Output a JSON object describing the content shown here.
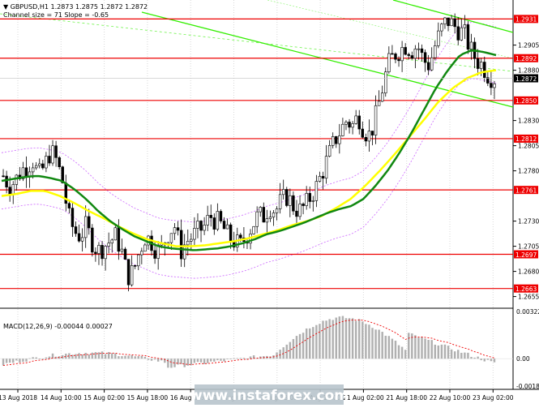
{
  "header": {
    "symbol_line": "▼ GBPUSD,H1  1.2873 1.2875 1.2872 1.2872",
    "channel_line": "Channel size = 71 Slope = -0.65"
  },
  "macd": {
    "label": "MACD(12,26,9) -0.00044 0.00027",
    "axis_ticks": [
      "0.00322",
      "0.00",
      "-0.00187"
    ]
  },
  "price_axis": {
    "ticks": [
      "1.2905",
      "1.2880",
      "1.2855",
      "1.2830",
      "1.2805",
      "1.2780",
      "1.2755",
      "1.2730",
      "1.2705",
      "1.2680",
      "1.2655"
    ],
    "current_price": "1.2872"
  },
  "time_axis": {
    "labels": [
      "13 Aug 2018",
      "14 Aug 10:00",
      "15 Aug 02:00",
      "15 Aug 18:00",
      "16 Aug 10:00",
      "17 Aug 02:00",
      "17 Aug 18:00",
      "20 Aug 10:00",
      "21 Aug 02:00",
      "21 Aug 18:00",
      "22 Aug 10:00",
      "23 Aug 02:00"
    ]
  },
  "watermark": "www.instaforex.com",
  "colors": {
    "level_line": "#ee0000",
    "channel": "#33ee00",
    "ma_fast": "#118811",
    "ma_slow": "#ffff00",
    "envelope": "#cc66ff",
    "candle": "#000000",
    "macd_hist": "#b0b0b0",
    "macd_signal": "#ee0000"
  },
  "chart_data": {
    "type": "candlestick",
    "symbol": "GBPUSD",
    "timeframe": "H1",
    "ylim": [
      1.2645,
      1.2945
    ],
    "levels": [
      {
        "label": "1.2931",
        "value": 1.2931
      },
      {
        "label": "1.2892",
        "value": 1.2892
      },
      {
        "label": "1.2850",
        "value": 1.285
      },
      {
        "label": "1.2812",
        "value": 1.2812
      },
      {
        "label": "1.2761",
        "value": 1.2761
      },
      {
        "label": "1.2697",
        "value": 1.2697
      },
      {
        "label": "1.2663",
        "value": 1.2663
      }
    ],
    "close_series": [
      1.2775,
      1.2765,
      1.277,
      1.278,
      1.2785,
      1.279,
      1.2775,
      1.2785,
      1.28,
      1.279,
      1.277,
      1.2735,
      1.272,
      1.2715,
      1.2725,
      1.271,
      1.27,
      1.2705,
      1.271,
      1.2715,
      1.27,
      1.2675,
      1.268,
      1.27,
      1.2715,
      1.271,
      1.27,
      1.2705,
      1.272,
      1.2725,
      1.27,
      1.271,
      1.2715,
      1.272,
      1.2725,
      1.2735,
      1.273,
      1.2725,
      1.2715,
      1.271,
      1.2705,
      1.2715,
      1.2725,
      1.2735,
      1.2735,
      1.2745,
      1.274,
      1.275,
      1.2755,
      1.2745,
      1.274,
      1.2745,
      1.2755,
      1.2765,
      1.278,
      1.2795,
      1.281,
      1.282,
      1.283,
      1.2825,
      1.2835,
      1.282,
      1.2815,
      1.2835,
      1.286,
      1.2885,
      1.2895,
      1.29,
      1.2905,
      1.29,
      1.2905,
      1.289,
      1.2885,
      1.2905,
      1.292,
      1.293,
      1.2925,
      1.292,
      1.2915,
      1.29,
      1.289,
      1.2885,
      1.2875,
      1.2872
    ],
    "ma_fast": [
      1.277,
      1.2772,
      1.2774,
      1.2775,
      1.2773,
      1.277,
      1.2762,
      1.2752,
      1.274,
      1.273,
      1.2722,
      1.2715,
      1.271,
      1.2705,
      1.2703,
      1.2702,
      1.2701,
      1.2702,
      1.2703,
      1.2705,
      1.2708,
      1.2712,
      1.2717,
      1.272,
      1.2724,
      1.2728,
      1.2733,
      1.2738,
      1.2742,
      1.2745,
      1.2752,
      1.2765,
      1.278,
      1.2798,
      1.2818,
      1.284,
      1.2862,
      1.288,
      1.2895,
      1.29,
      1.2898,
      1.2895
    ],
    "ma_slow": [
      1.2755,
      1.2757,
      1.276,
      1.276,
      1.2755,
      1.2748,
      1.274,
      1.2733,
      1.2725,
      1.2718,
      1.2712,
      1.2708,
      1.2705,
      1.2705,
      1.2706,
      1.2708,
      1.271,
      1.2713,
      1.2717,
      1.2721,
      1.2726,
      1.273,
      1.2735,
      1.2743,
      1.2752,
      1.2765,
      1.278,
      1.2796,
      1.2813,
      1.283,
      1.2848,
      1.2862,
      1.2872,
      1.2878,
      1.288
    ],
    "channel": {
      "slope": -0.65,
      "size": 71
    },
    "macd": {
      "fast": 12,
      "slow": 26,
      "signal": 9,
      "main": -0.00044,
      "signal_value": 0.00027,
      "ylim": [
        -0.00187,
        0.00322
      ]
    }
  }
}
